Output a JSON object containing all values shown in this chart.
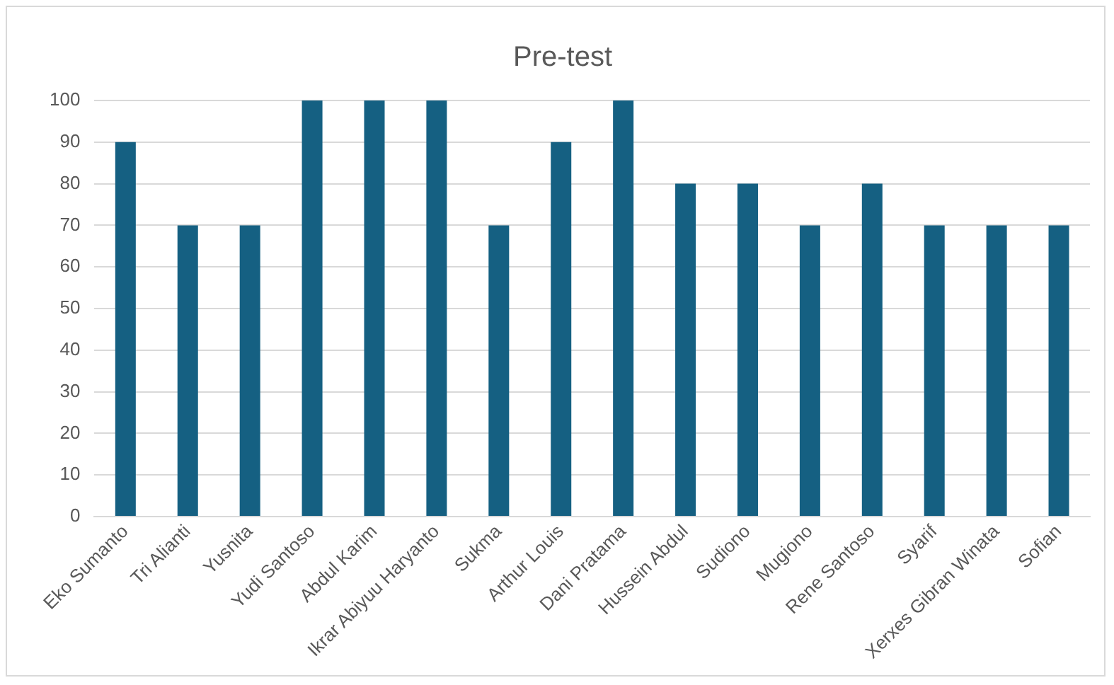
{
  "chart_data": {
    "type": "bar",
    "title": "Pre-test",
    "categories": [
      "Eko Sumanto",
      "Tri Alianti",
      "Yusnita",
      "Yudi Santoso",
      "Abdul Karim",
      "Ikrar Abiyuu Haryanto",
      "Sukma",
      "Arthur Louis",
      "Dani Pratama",
      "Hussein Abdul",
      "Sudiono",
      "Mugiono",
      "Rene Santoso",
      "Syarif",
      "Xerxes Gibran Winata",
      "Sofian"
    ],
    "values": [
      90,
      70,
      70,
      100,
      100,
      100,
      70,
      90,
      100,
      80,
      80,
      70,
      80,
      70,
      70,
      70
    ],
    "color": "#156082",
    "ylim": [
      0,
      100
    ],
    "yticks": [
      0,
      10,
      20,
      30,
      40,
      50,
      60,
      70,
      80,
      90,
      100
    ],
    "grid": "y",
    "legend": false
  }
}
